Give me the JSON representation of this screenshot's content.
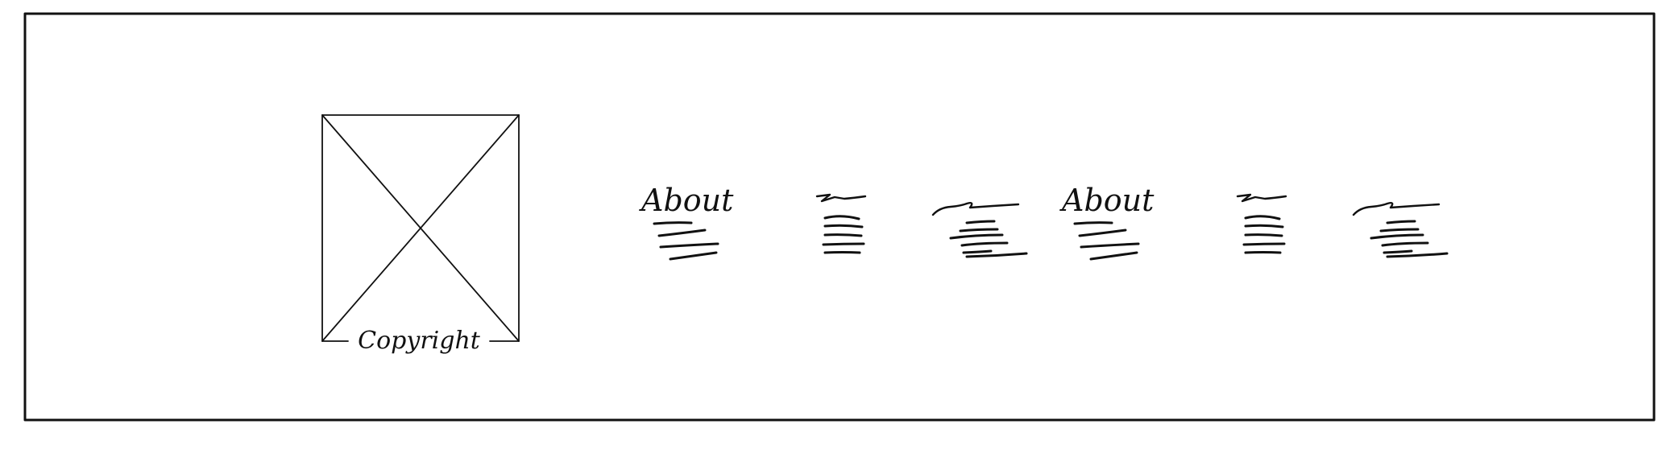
{
  "footer": {
    "logo_caption": "Copyright",
    "columns": [
      {
        "heading": "About"
      },
      {
        "heading": ""
      },
      {
        "heading": ""
      },
      {
        "heading": "About"
      },
      {
        "heading": ""
      },
      {
        "heading": ""
      }
    ]
  },
  "colors": {
    "ink": "#111111",
    "background": "#ffffff"
  },
  "icons": {
    "logo": "image-placeholder-icon"
  }
}
